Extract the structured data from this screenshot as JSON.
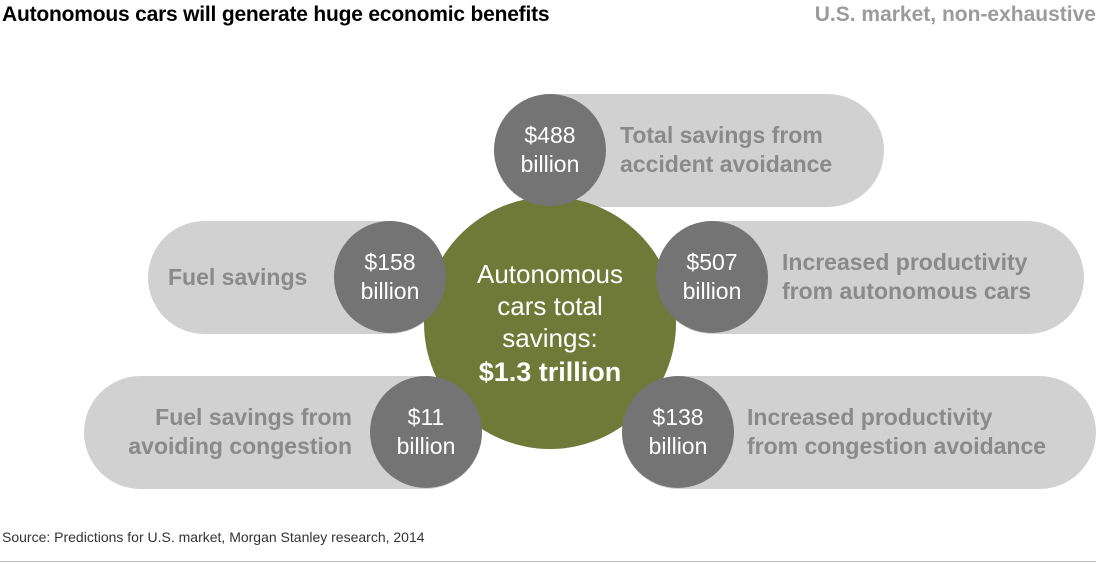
{
  "header": {
    "title": "Autonomous cars will generate huge economic benefits",
    "subtitle": "U.S. market, non-exhaustive"
  },
  "hub": {
    "line1": "Autonomous",
    "line2": "cars total",
    "line3": "savings:",
    "total": "$1.3 trillion"
  },
  "items": [
    {
      "amount": "$488",
      "unit": "billion",
      "label_line1": "Total savings from",
      "label_line2": "accident avoidance"
    },
    {
      "amount": "$158",
      "unit": "billion",
      "label_line1": "Fuel savings",
      "label_line2": ""
    },
    {
      "amount": "$507",
      "unit": "billion",
      "label_line1": "Increased productivity",
      "label_line2": "from autonomous cars"
    },
    {
      "amount": "$11",
      "unit": "billion",
      "label_line1": "Fuel savings from",
      "label_line2": "avoiding congestion"
    },
    {
      "amount": "$138",
      "unit": "billion",
      "label_line1": "Increased productivity",
      "label_line2": "from congestion avoidance"
    }
  ],
  "footer": {
    "source": "Source: Predictions for U.S. market, Morgan Stanley research, 2014"
  },
  "colors": {
    "hub": "#6f7a38",
    "bubble": "#747474",
    "pill": "#d1d1d1",
    "pill_text": "#8a8a8a",
    "subtitle": "#9b9b9b"
  }
}
